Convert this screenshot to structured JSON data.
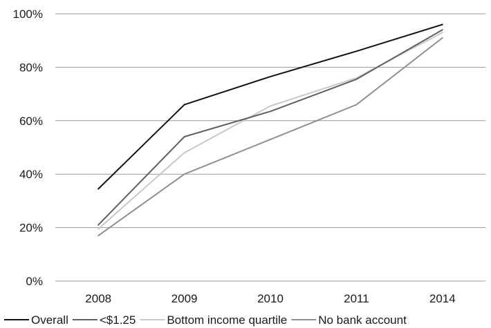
{
  "chart_data": {
    "type": "line",
    "title": "",
    "xlabel": "",
    "ylabel": "",
    "categories": [
      "2008",
      "2009",
      "2010",
      "2011",
      "2014"
    ],
    "ylim": [
      0,
      100
    ],
    "yticks": [
      "0%",
      "20%",
      "40%",
      "60%",
      "80%",
      "100%"
    ],
    "grid": true,
    "legend_position": "bottom",
    "series": [
      {
        "name": "Overall",
        "values": [
          34.5,
          66,
          76.5,
          86,
          96
        ],
        "color": "#111111"
      },
      {
        "name": "<$1.25",
        "values": [
          21,
          54,
          63.5,
          75.5,
          94
        ],
        "color": "#5f5f5f"
      },
      {
        "name": "Bottom income quartile",
        "values": [
          19.5,
          48,
          65.5,
          76,
          93
        ],
        "color": "#c8c8c8"
      },
      {
        "name": "No bank account",
        "values": [
          17,
          40,
          53,
          66,
          91
        ],
        "color": "#8f8f8f"
      }
    ]
  }
}
